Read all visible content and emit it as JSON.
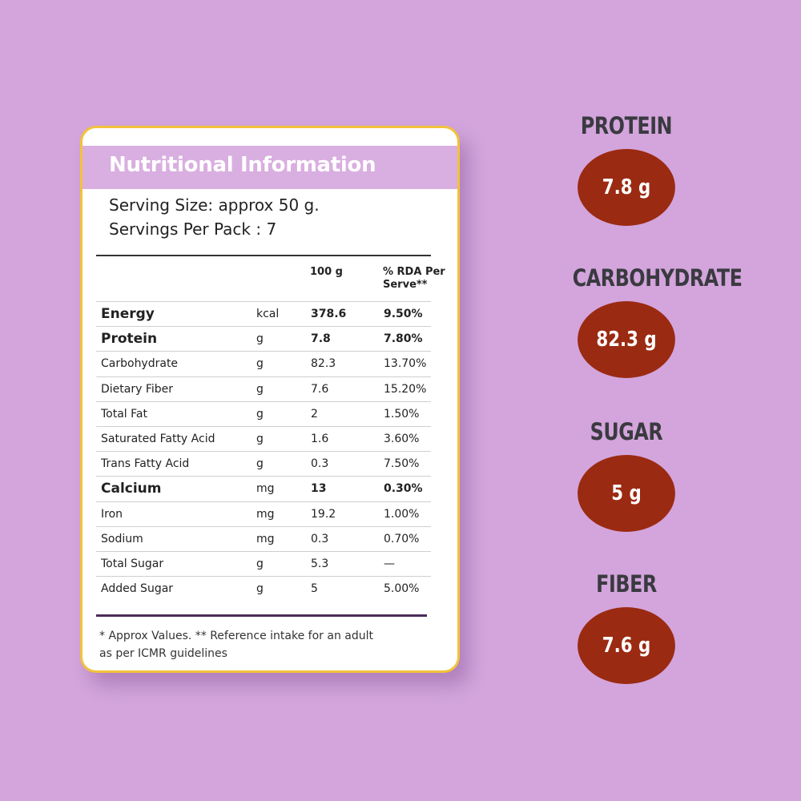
{
  "panel": {
    "title": "Nutritional Information",
    "serving_size": "Serving Size: approx 50 g.",
    "servings_per_pack": "Servings Per Pack : 7",
    "col_100g": "100 g",
    "col_rda": "% RDA Per Serve**",
    "rows": [
      {
        "name": "Energy",
        "unit": "kcal",
        "value": "378.6",
        "rda": "9.50%",
        "bold": true
      },
      {
        "name": "Protein",
        "unit": "g",
        "value": "7.8",
        "rda": "7.80%",
        "bold": true
      },
      {
        "name": "Carbohydrate",
        "unit": "g",
        "value": "82.3",
        "rda": "13.70%",
        "bold": false
      },
      {
        "name": "Dietary Fiber",
        "unit": "g",
        "value": "7.6",
        "rda": "15.20%",
        "bold": false
      },
      {
        "name": "Total Fat",
        "unit": "g",
        "value": "2",
        "rda": "1.50%",
        "bold": false
      },
      {
        "name": "Saturated Fatty Acid",
        "unit": "g",
        "value": "1.6",
        "rda": "3.60%",
        "bold": false
      },
      {
        "name": "Trans Fatty Acid",
        "unit": "g",
        "value": "0.3",
        "rda": "7.50%",
        "bold": false
      },
      {
        "name": "Calcium",
        "unit": "mg",
        "value": "13",
        "rda": "0.30%",
        "bold": true
      },
      {
        "name": "Iron",
        "unit": "mg",
        "value": "19.2",
        "rda": "1.00%",
        "bold": false
      },
      {
        "name": "Sodium",
        "unit": "mg",
        "value": "0.3",
        "rda": "0.70%",
        "bold": false
      },
      {
        "name": "Total Sugar",
        "unit": "g",
        "value": "5.3",
        "rda": "—",
        "bold": false
      },
      {
        "name": "Added Sugar",
        "unit": "g",
        "value": "5",
        "rda": "5.00%",
        "bold": false
      }
    ],
    "footnote": "* Approx Values. ** Reference intake for an adult as per ICMR guidelines"
  },
  "highlights": [
    {
      "label": "PROTEIN",
      "value": "7.8 g"
    },
    {
      "label": "CARBOHYDRATE",
      "value": "82.3 g"
    },
    {
      "label": "SUGAR",
      "value": "5 g"
    },
    {
      "label": "FIBER",
      "value": "7.6 g"
    }
  ],
  "colors": {
    "background": "#d3a5dc",
    "header_band": "#d9aee0",
    "card_border": "#f2c23a",
    "badge": "#9b2a12",
    "label": "#3a3a40"
  }
}
